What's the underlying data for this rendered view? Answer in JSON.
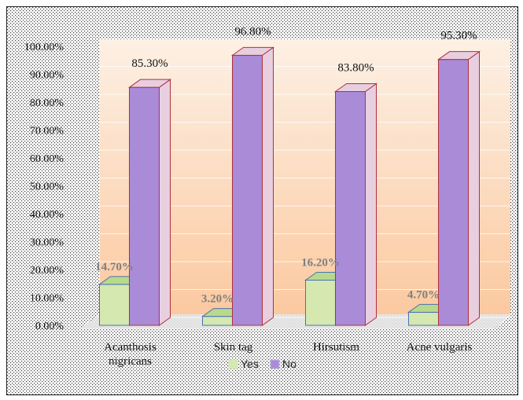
{
  "chart_data": {
    "type": "bar",
    "categories": [
      "Acanthosis nigricans",
      "Skin tag",
      "Hirsutism",
      "Acne vulgaris"
    ],
    "category_lines": [
      [
        "Acanthosis",
        "nigricans"
      ],
      [
        "Skin tag"
      ],
      [
        "Hirsutism"
      ],
      [
        "Acne vulgaris"
      ]
    ],
    "series": [
      {
        "name": "Yes",
        "values": [
          14.7,
          3.2,
          16.2,
          4.7
        ],
        "labels": [
          "14.70%",
          "3.20%",
          "16.20%",
          "4.70%"
        ]
      },
      {
        "name": "No",
        "values": [
          85.3,
          96.8,
          83.8,
          95.3
        ],
        "labels": [
          "85.30%",
          "96.80%",
          "83.80%",
          "95.30%"
        ]
      }
    ],
    "ylim": [
      0,
      100
    ],
    "yticks": [
      "0.00%",
      "10.00%",
      "20.00%",
      "30.00%",
      "40.00%",
      "50.00%",
      "60.00%",
      "70.00%",
      "80.00%",
      "90.00%",
      "100.00%"
    ],
    "legend_position": "bottom",
    "style": "3d-column",
    "colors": {
      "yes_fill": "#d4e8b0",
      "yes_face": "#b8d98c",
      "yes_edge": "#4a72b0",
      "no_fill": "#a98bd8",
      "no_face": "#e8cfe0",
      "no_edge": "#b0303a",
      "wall_top": "#fdf0e4",
      "wall_bottom": "#fbc9a0",
      "floor": "#e4e4e4"
    }
  }
}
